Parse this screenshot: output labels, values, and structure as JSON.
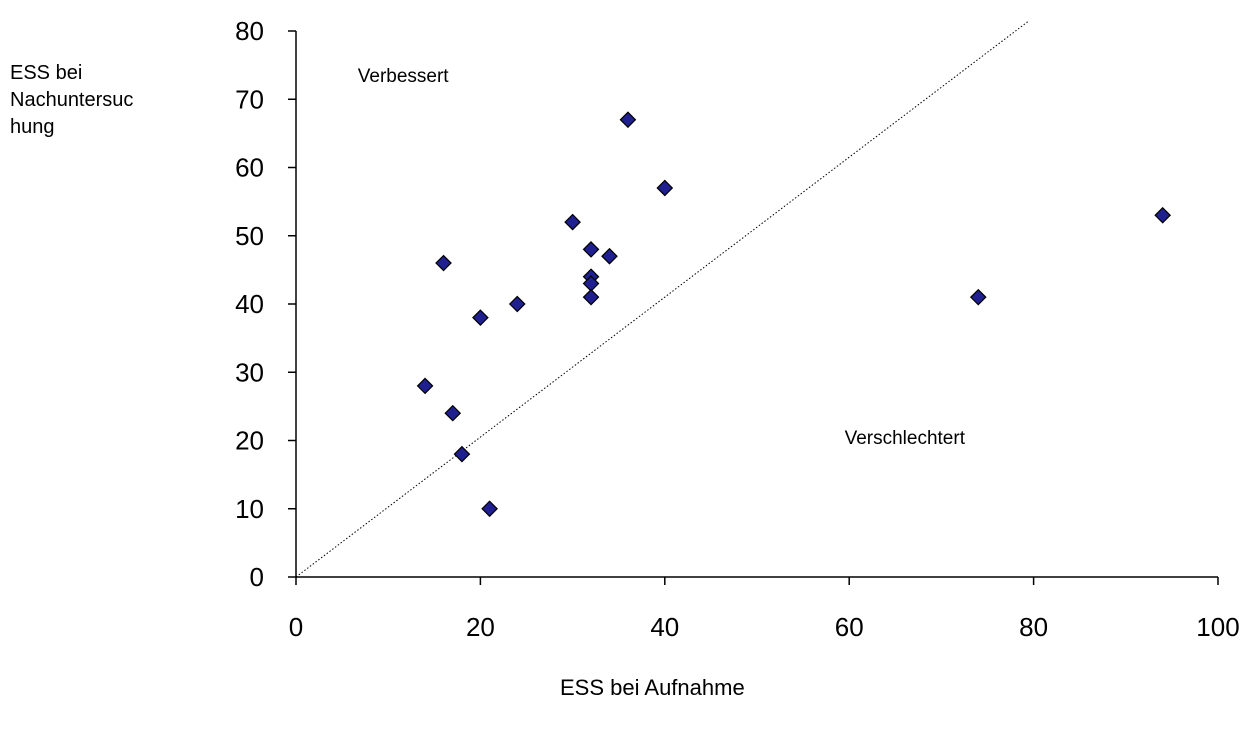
{
  "chart_data": {
    "type": "scatter",
    "title": "",
    "xlabel": "ESS bei Aufnahme",
    "ylabel_lines": [
      "ESS bei",
      "Nachuntersuc",
      "hung"
    ],
    "xlim": [
      0,
      100
    ],
    "ylim": [
      0,
      80
    ],
    "xticks": [
      0,
      20,
      40,
      60,
      80,
      100
    ],
    "yticks": [
      0,
      10,
      20,
      30,
      40,
      50,
      60,
      70,
      80
    ],
    "grid": false,
    "marker": "diamond",
    "marker_color": "#1f1f8f",
    "reference_line": {
      "style": "dotted",
      "from": [
        0,
        0
      ],
      "to": [
        79.5,
        81.5
      ]
    },
    "annotations": [
      {
        "text": "Verbessert",
        "x": 6.7,
        "y": 72.5
      },
      {
        "text": "Verschlechtert",
        "x": 59.5,
        "y": 19.5
      }
    ],
    "points": [
      {
        "x": 14,
        "y": 28
      },
      {
        "x": 16,
        "y": 46
      },
      {
        "x": 17,
        "y": 24
      },
      {
        "x": 18,
        "y": 18
      },
      {
        "x": 20,
        "y": 38
      },
      {
        "x": 21,
        "y": 10
      },
      {
        "x": 24,
        "y": 40
      },
      {
        "x": 30,
        "y": 52
      },
      {
        "x": 32,
        "y": 48
      },
      {
        "x": 32,
        "y": 44
      },
      {
        "x": 32,
        "y": 43
      },
      {
        "x": 32,
        "y": 41
      },
      {
        "x": 34,
        "y": 47
      },
      {
        "x": 36,
        "y": 67
      },
      {
        "x": 40,
        "y": 57
      },
      {
        "x": 74,
        "y": 41
      },
      {
        "x": 94,
        "y": 53
      }
    ]
  }
}
